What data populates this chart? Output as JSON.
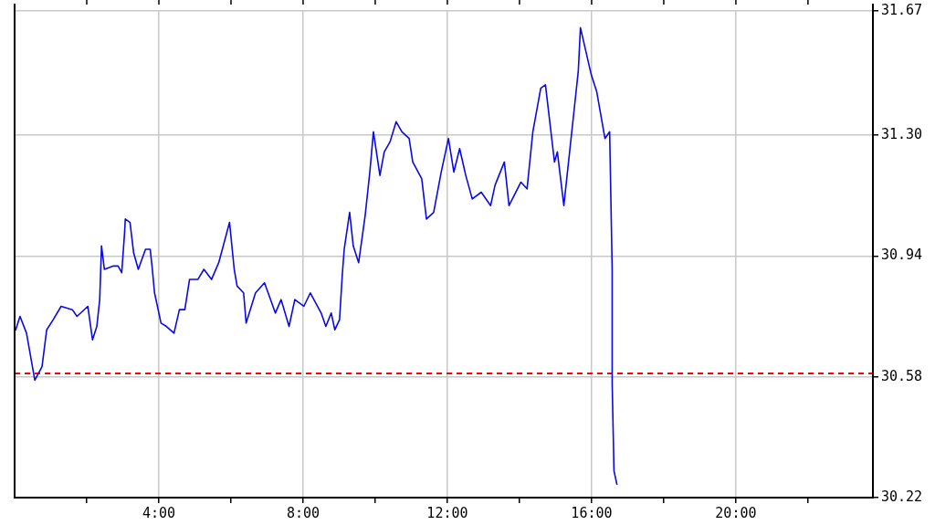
{
  "chart_data": {
    "type": "line",
    "x": [
      0.03,
      0.15,
      0.33,
      0.56,
      0.76,
      0.89,
      1.07,
      1.29,
      1.6,
      1.73,
      2.03,
      2.16,
      2.28,
      2.36,
      2.41,
      2.49,
      2.74,
      2.87,
      2.97,
      3.05,
      3.07,
      3.2,
      3.3,
      3.43,
      3.63,
      3.76,
      3.81,
      3.88,
      4.06,
      4.21,
      4.42,
      4.57,
      4.72,
      4.85,
      5.08,
      5.25,
      5.46,
      5.66,
      5.96,
      6.09,
      6.17,
      6.35,
      6.42,
      6.68,
      6.93,
      7.23,
      7.39,
      7.61,
      7.77,
      8.02,
      8.2,
      8.5,
      8.63,
      8.78,
      8.88,
      9.01,
      9.09,
      9.14,
      9.29,
      9.39,
      9.54,
      9.72,
      9.85,
      9.95,
      10.13,
      10.25,
      10.41,
      10.58,
      10.74,
      10.94,
      11.04,
      11.29,
      11.42,
      11.62,
      11.83,
      12.03,
      12.18,
      12.34,
      12.51,
      12.69,
      12.94,
      13.2,
      13.32,
      13.58,
      13.71,
      14.04,
      14.21,
      14.37,
      14.59,
      14.72,
      14.97,
      15.05,
      15.23,
      15.51,
      15.63,
      15.69,
      15.99,
      16.14,
      16.37,
      16.5,
      16.57,
      16.57,
      16.62,
      16.7
    ],
    "series": [
      {
        "color": "#0a0ae6",
        "values": [
          30.72,
          30.76,
          30.71,
          30.57,
          30.61,
          30.72,
          30.75,
          30.79,
          30.78,
          30.76,
          30.79,
          30.69,
          30.73,
          30.81,
          30.97,
          30.9,
          30.91,
          30.91,
          30.89,
          31.01,
          31.05,
          31.04,
          30.95,
          30.9,
          30.96,
          30.96,
          30.91,
          30.83,
          30.74,
          30.73,
          30.71,
          30.78,
          30.78,
          30.87,
          30.87,
          30.9,
          30.87,
          30.92,
          31.04,
          30.9,
          30.85,
          30.83,
          30.74,
          30.83,
          30.86,
          30.77,
          30.81,
          30.73,
          30.81,
          30.79,
          30.83,
          30.77,
          30.73,
          30.77,
          30.72,
          30.75,
          30.89,
          30.96,
          31.07,
          30.97,
          30.92,
          31.06,
          31.19,
          31.31,
          31.18,
          31.25,
          31.28,
          31.34,
          31.31,
          31.29,
          31.22,
          31.17,
          31.05,
          31.07,
          31.19,
          31.29,
          31.19,
          31.26,
          31.18,
          31.11,
          31.13,
          31.09,
          31.15,
          31.22,
          31.09,
          31.16,
          31.14,
          31.31,
          31.44,
          31.45,
          31.22,
          31.25,
          31.09,
          31.37,
          31.49,
          31.62,
          31.48,
          31.43,
          31.29,
          31.31,
          30.9,
          30.56,
          30.3,
          30.26
        ]
      }
    ],
    "xlim": [
      0,
      23.8
    ],
    "xticks": [
      {
        "value": 2,
        "label": null
      },
      {
        "value": 4,
        "label": "4:00"
      },
      {
        "value": 6,
        "label": null
      },
      {
        "value": 8,
        "label": "8:00"
      },
      {
        "value": 10,
        "label": null
      },
      {
        "value": 12,
        "label": "12:00"
      },
      {
        "value": 14,
        "label": null
      },
      {
        "value": 16,
        "label": "16:00"
      },
      {
        "value": 18,
        "label": null
      },
      {
        "value": 20,
        "label": "20:00"
      },
      {
        "value": 22,
        "label": null
      }
    ],
    "ylim": [
      30.22,
      31.67
    ],
    "yticks": [
      {
        "value": 30.22,
        "label": "30.22"
      },
      {
        "value": 30.58,
        "label": "30.58"
      },
      {
        "value": 30.94,
        "label": "30.94"
      },
      {
        "value": 31.3,
        "label": "31.30"
      },
      {
        "value": 31.67,
        "label": "31.67"
      }
    ],
    "ref_lines": [
      {
        "axis": "y",
        "value": 30.59,
        "color": "#ff0000",
        "line_style": "dashed"
      }
    ],
    "grid": true,
    "legend": false,
    "marker": "none",
    "line_style": "solid"
  }
}
